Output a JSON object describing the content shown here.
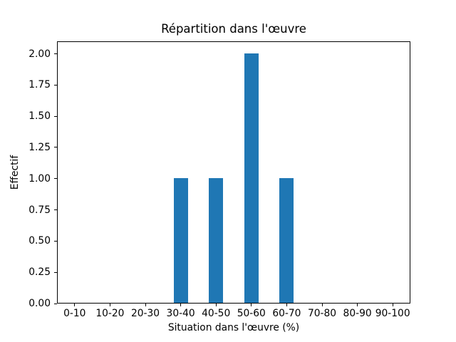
{
  "chart_data": {
    "type": "bar",
    "title": "Répartition dans l'œuvre",
    "xlabel": "Situation dans l'œuvre (%)",
    "ylabel": "Effectif",
    "categories": [
      "0-10",
      "10-20",
      "20-30",
      "30-40",
      "40-50",
      "50-60",
      "60-70",
      "70-80",
      "80-90",
      "90-100"
    ],
    "values": [
      0,
      0,
      0,
      1,
      1,
      2,
      1,
      0,
      0,
      0
    ],
    "yticks": [
      "0.00",
      "0.25",
      "0.50",
      "0.75",
      "1.00",
      "1.25",
      "1.50",
      "1.75",
      "2.00"
    ],
    "ylim": [
      0,
      2.1
    ],
    "bar_color": "#1f77b4",
    "bar_width_fraction": 0.4,
    "grid": false,
    "legend_position": "none",
    "background_color": "#ffffff",
    "spine_color": "#000000"
  }
}
